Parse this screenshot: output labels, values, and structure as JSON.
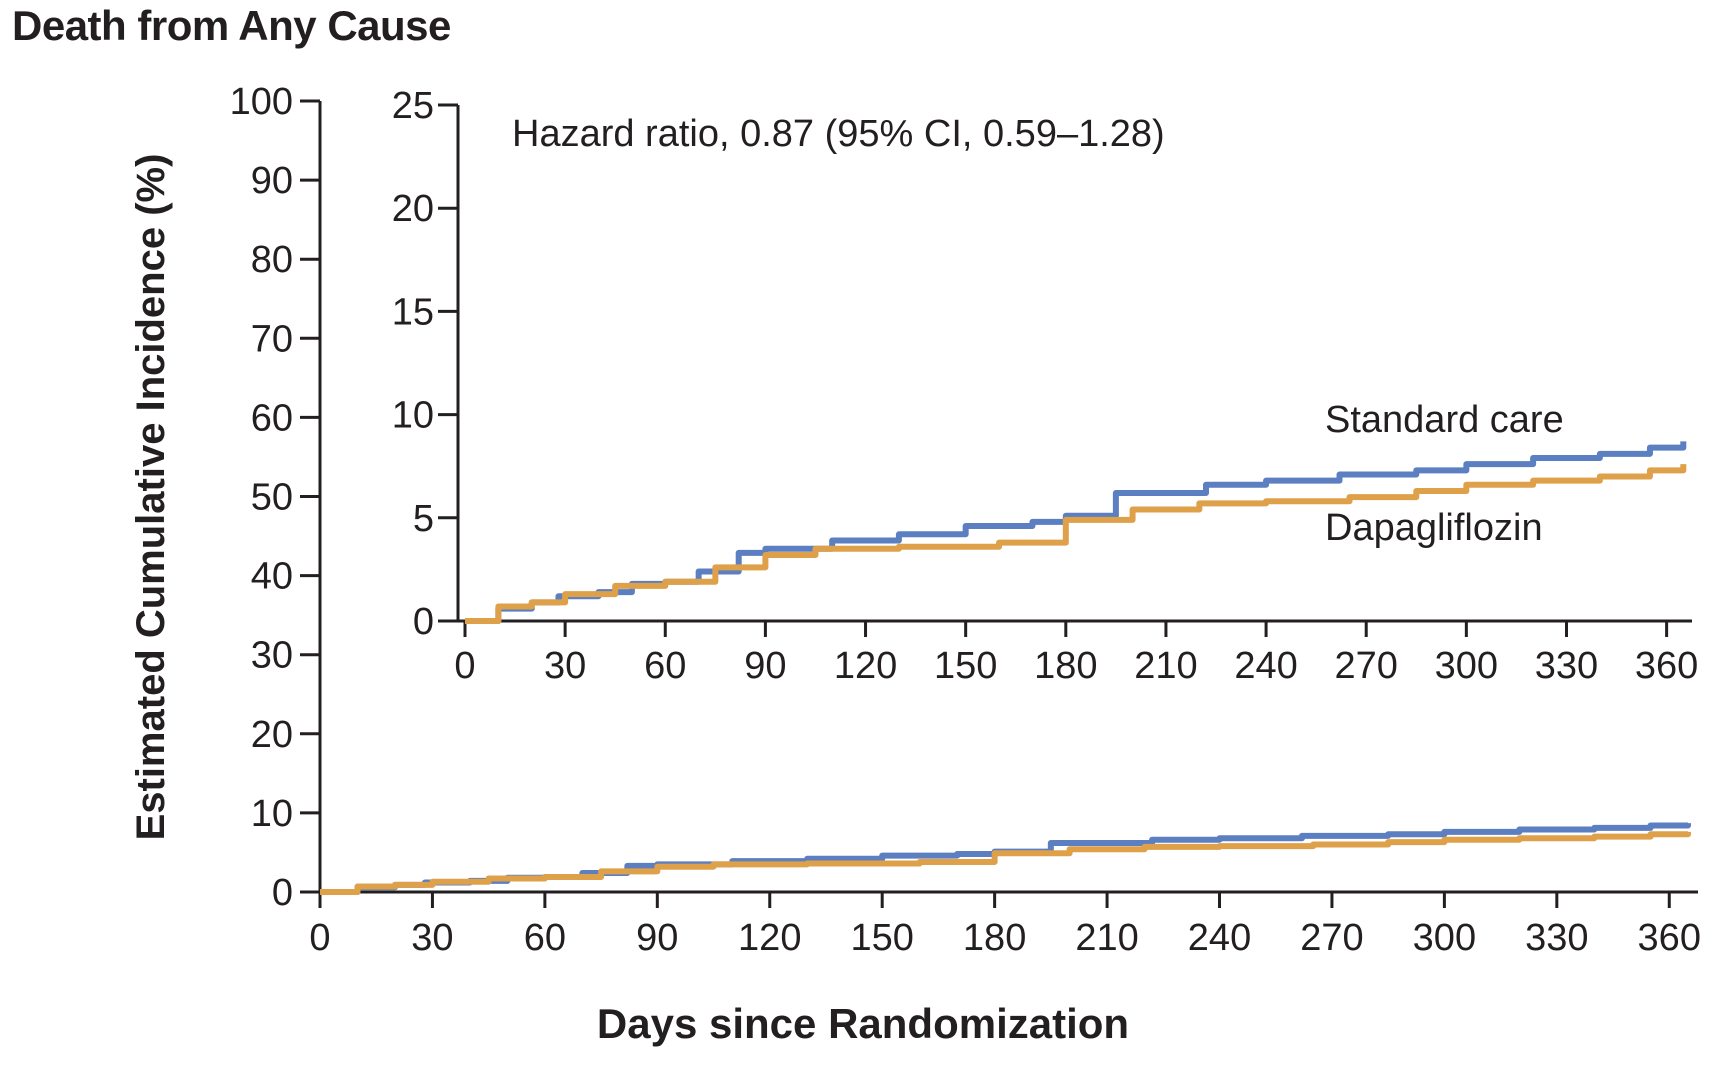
{
  "figure": {
    "title": "Death from Any Cause",
    "xlabel": "Days since Randomization",
    "ylabel": "Estimated Cumulative Incidence (%)"
  },
  "chart_data": [
    {
      "type": "line",
      "panel": "main",
      "xlabel": "Days since Randomization",
      "ylabel": "Estimated Cumulative Incidence (%)",
      "xlim": [
        0,
        365
      ],
      "ylim": [
        0,
        100
      ],
      "x_ticks": [
        0,
        30,
        60,
        90,
        120,
        150,
        180,
        210,
        240,
        270,
        300,
        330,
        360
      ],
      "y_ticks": [
        0,
        10,
        20,
        30,
        40,
        50,
        60,
        70,
        80,
        90,
        100
      ],
      "colors": {
        "standard_care": "#5b7fc0",
        "dapagliflozin": "#dfa04a"
      },
      "series": [
        {
          "name": "Standard care",
          "x": [
            0,
            10,
            20,
            28,
            40,
            50,
            60,
            70,
            82,
            90,
            110,
            130,
            150,
            170,
            180,
            195,
            222,
            240,
            262,
            285,
            300,
            320,
            340,
            355,
            365
          ],
          "y": [
            0,
            0.6,
            0.9,
            1.2,
            1.4,
            1.8,
            1.9,
            2.4,
            3.3,
            3.5,
            3.9,
            4.2,
            4.6,
            4.8,
            5.1,
            6.2,
            6.6,
            6.8,
            7.1,
            7.3,
            7.6,
            7.9,
            8.1,
            8.4,
            8.7
          ]
        },
        {
          "name": "Dapagliflozin",
          "x": [
            0,
            10,
            20,
            30,
            45,
            60,
            75,
            90,
            105,
            130,
            160,
            180,
            200,
            220,
            240,
            265,
            285,
            300,
            320,
            340,
            355,
            365
          ],
          "y": [
            0,
            0.7,
            0.9,
            1.3,
            1.7,
            1.9,
            2.6,
            3.2,
            3.5,
            3.6,
            3.8,
            4.9,
            5.4,
            5.7,
            5.8,
            6.0,
            6.3,
            6.6,
            6.8,
            7.0,
            7.3,
            7.6
          ]
        }
      ]
    },
    {
      "type": "line",
      "panel": "inset",
      "xlim": [
        0,
        370
      ],
      "ylim": [
        0,
        25
      ],
      "x_ticks": [
        0,
        30,
        60,
        90,
        120,
        150,
        180,
        210,
        240,
        270,
        300,
        330,
        360
      ],
      "y_ticks": [
        0,
        5,
        10,
        15,
        20,
        25
      ],
      "annotation": "Hazard ratio, 0.87 (95% CI, 0.59–1.28)",
      "series": [
        {
          "name": "Standard care",
          "x": [
            0,
            10,
            20,
            28,
            40,
            50,
            60,
            70,
            82,
            90,
            110,
            130,
            150,
            170,
            180,
            195,
            222,
            240,
            262,
            285,
            300,
            320,
            340,
            355,
            365
          ],
          "y": [
            0,
            0.6,
            0.9,
            1.2,
            1.4,
            1.8,
            1.9,
            2.4,
            3.3,
            3.5,
            3.9,
            4.2,
            4.6,
            4.8,
            5.1,
            6.2,
            6.6,
            6.8,
            7.1,
            7.3,
            7.6,
            7.9,
            8.1,
            8.4,
            8.7
          ]
        },
        {
          "name": "Dapagliflozin",
          "x": [
            0,
            10,
            20,
            30,
            45,
            60,
            75,
            90,
            105,
            130,
            160,
            180,
            200,
            220,
            240,
            265,
            285,
            300,
            320,
            340,
            355,
            365
          ],
          "y": [
            0,
            0.7,
            0.9,
            1.3,
            1.7,
            1.9,
            2.6,
            3.2,
            3.5,
            3.6,
            3.8,
            4.9,
            5.4,
            5.7,
            5.8,
            6.0,
            6.3,
            6.6,
            6.8,
            7.0,
            7.3,
            7.6
          ]
        }
      ]
    }
  ]
}
